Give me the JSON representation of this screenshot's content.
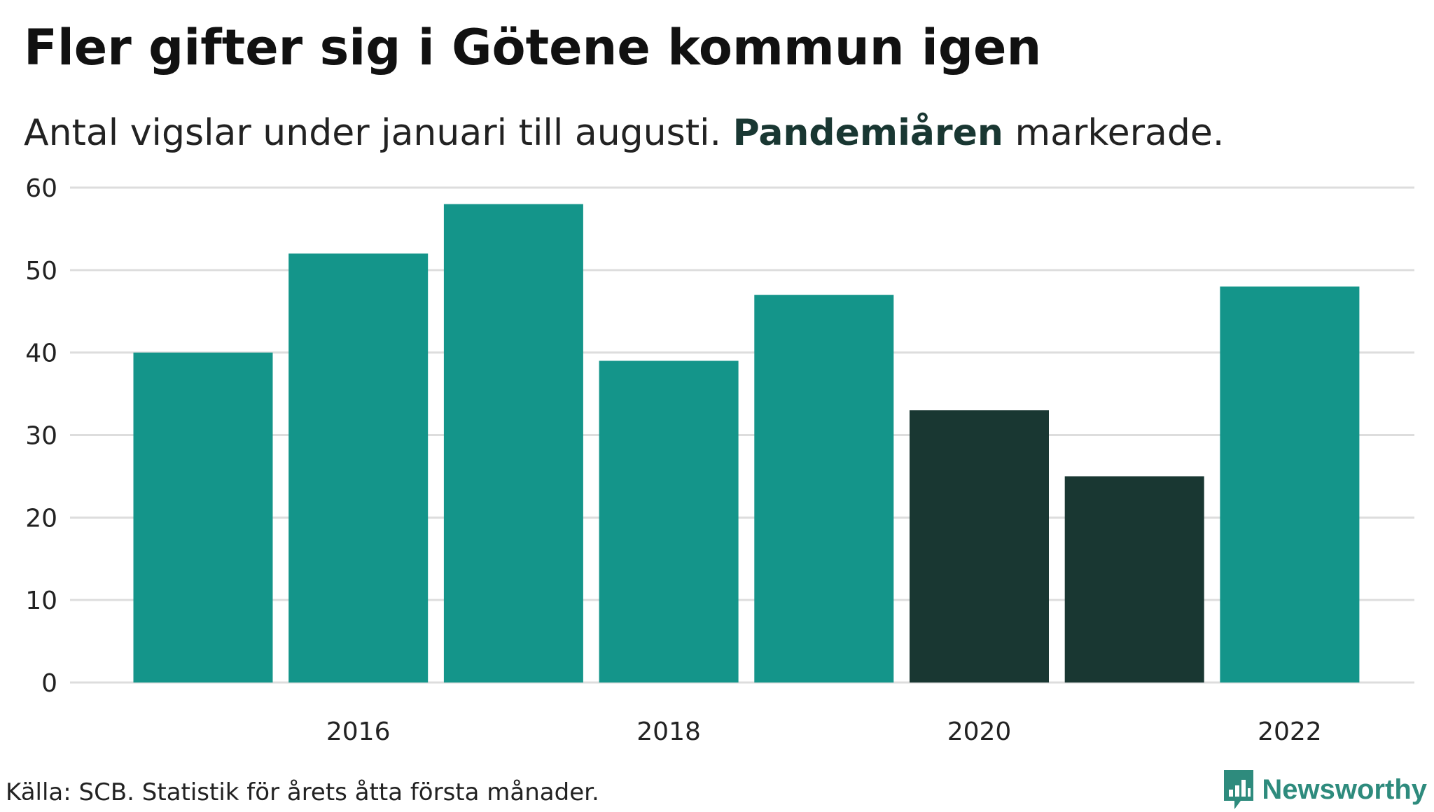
{
  "header": {
    "title": "Fler gifter sig i Götene kommun igen",
    "subtitle_pre": "Antal vigslar under januari till augusti. ",
    "subtitle_highlight": "Pandemiåren",
    "subtitle_post": " markerade."
  },
  "footer": {
    "source": "Källa: SCB. Statistik för årets åtta första månader.",
    "brand": "Newsworthy"
  },
  "colors": {
    "normal": "#14958a",
    "pandemic": "#193732",
    "grid": "#dddddd",
    "brand": "#2e8b7d"
  },
  "chart_data": {
    "type": "bar",
    "categories": [
      "2015",
      "2016",
      "2017",
      "2018",
      "2019",
      "2020",
      "2021",
      "2022"
    ],
    "values": [
      40,
      52,
      58,
      39,
      47,
      33,
      25,
      48
    ],
    "highlighted": [
      false,
      false,
      false,
      false,
      false,
      true,
      true,
      false
    ],
    "x_tick_labels": [
      "2016",
      "2018",
      "2020",
      "2022"
    ],
    "y_ticks": [
      0,
      10,
      20,
      30,
      40,
      50,
      60
    ],
    "ylim": [
      0,
      60
    ],
    "grid": true
  }
}
